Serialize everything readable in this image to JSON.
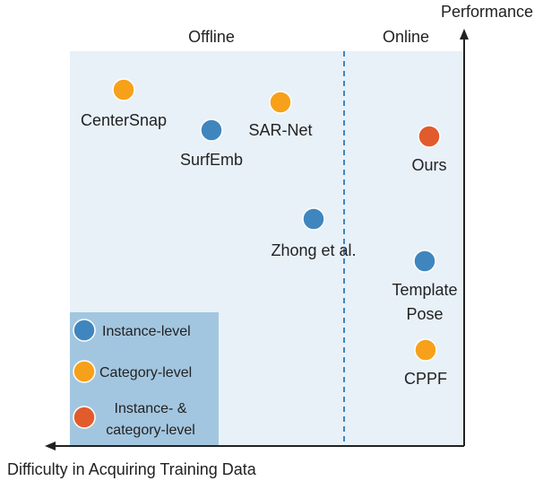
{
  "chart_data": {
    "type": "scatter",
    "regions": [
      "Offline",
      "Online"
    ],
    "axes": {
      "y_label": "Performance",
      "x_label": "Difficulty in Acquiring Training Data"
    },
    "points": [
      {
        "label": "CenterSnap",
        "group": "category",
        "offline": true
      },
      {
        "label": "SAR-Net",
        "group": "category",
        "offline": true
      },
      {
        "label": "SurfEmb",
        "group": "instance",
        "offline": true
      },
      {
        "label": "Zhong et al.",
        "group": "instance",
        "offline": true
      },
      {
        "label": "Ours",
        "group": "both",
        "offline": false
      },
      {
        "label": "Template",
        "label2": "Pose",
        "group": "instance",
        "offline": false
      },
      {
        "label": "CPPF",
        "group": "category",
        "offline": false
      }
    ],
    "legend": [
      {
        "group": "instance",
        "text": "Instance-level"
      },
      {
        "group": "category",
        "text": "Category-level"
      },
      {
        "group": "both",
        "text": "Instance- &",
        "text2": "category-level"
      }
    ],
    "colors": {
      "instance": "#3f86bf",
      "category": "#f7a11a",
      "both": "#e25b2c",
      "plot_bg": "#e8f1f8",
      "legend_bg": "#a3c6e0",
      "divider": "#3f86bf"
    }
  }
}
